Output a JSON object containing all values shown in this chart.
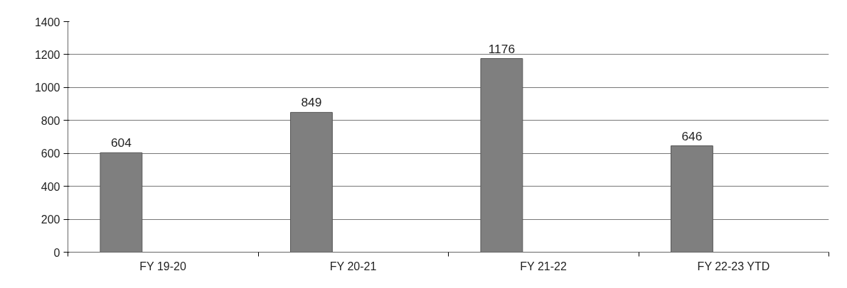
{
  "chart_data": {
    "type": "bar",
    "categories": [
      "FY 19-20",
      "FY 20-21",
      "FY 21-22",
      "FY 22-23 YTD"
    ],
    "values": [
      604,
      849,
      1176,
      646
    ],
    "color": "#7f7f7f",
    "ylim": [
      0,
      1400
    ],
    "yticks": [
      0,
      200,
      400,
      600,
      800,
      1000,
      1200,
      1400
    ],
    "grid": "y",
    "data_labels": true
  }
}
